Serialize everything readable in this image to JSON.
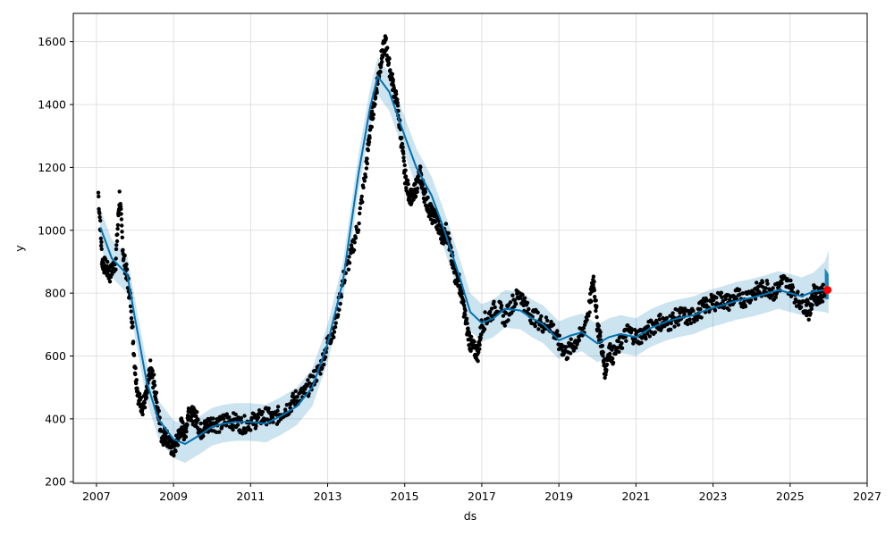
{
  "chart_data": {
    "type": "line",
    "xlabel": "ds",
    "ylabel": "y",
    "xlim": [
      2006.4,
      2027.0
    ],
    "ylim": [
      195,
      1690
    ],
    "grid": true,
    "x_ticks": [
      {
        "value": 2007,
        "label": "2007"
      },
      {
        "value": 2009,
        "label": "2009"
      },
      {
        "value": 2011,
        "label": "2011"
      },
      {
        "value": 2013,
        "label": "2013"
      },
      {
        "value": 2015,
        "label": "2015"
      },
      {
        "value": 2017,
        "label": "2017"
      },
      {
        "value": 2019,
        "label": "2019"
      },
      {
        "value": 2021,
        "label": "2021"
      },
      {
        "value": 2023,
        "label": "2023"
      },
      {
        "value": 2025,
        "label": "2025"
      },
      {
        "value": 2027,
        "label": "2027"
      }
    ],
    "y_ticks": [
      {
        "value": 200,
        "label": "200"
      },
      {
        "value": 400,
        "label": "400"
      },
      {
        "value": 600,
        "label": "600"
      },
      {
        "value": 800,
        "label": "800"
      },
      {
        "value": 1000,
        "label": "1000"
      },
      {
        "value": 1200,
        "label": "1200"
      },
      {
        "value": 1400,
        "label": "1400"
      },
      {
        "value": 1600,
        "label": "1600"
      }
    ],
    "colors": {
      "observed": "#000000",
      "forecast_line": "#0072b2",
      "interval_fill": "#0072b2",
      "highlight": "#ff0000",
      "grid": "#d9d9d9"
    },
    "forecast": {
      "x": [
        2007.1,
        2007.4,
        2007.8,
        2008.0,
        2008.3,
        2008.6,
        2009.0,
        2009.3,
        2009.7,
        2010.0,
        2010.3,
        2010.6,
        2011.0,
        2011.4,
        2011.8,
        2012.2,
        2012.6,
        2013.0,
        2013.4,
        2013.8,
        2014.1,
        2014.3,
        2014.6,
        2015.0,
        2015.3,
        2015.7,
        2016.0,
        2016.4,
        2016.7,
        2017.0,
        2017.3,
        2017.6,
        2018.0,
        2018.3,
        2018.6,
        2019.0,
        2019.3,
        2019.6,
        2020.0,
        2020.3,
        2020.6,
        2021.0,
        2021.4,
        2021.8,
        2022.1,
        2022.5,
        2022.9,
        2023.2,
        2023.6,
        2024.0,
        2024.3,
        2024.7,
        2025.0,
        2025.3,
        2025.6,
        2025.9,
        2026.0
      ],
      "yhat": [
        1010,
        910,
        860,
        720,
        520,
        400,
        335,
        320,
        350,
        375,
        385,
        390,
        390,
        385,
        410,
        440,
        500,
        640,
        840,
        1180,
        1390,
        1490,
        1440,
        1300,
        1200,
        1110,
        1010,
        860,
        740,
        705,
        720,
        750,
        745,
        720,
        700,
        650,
        665,
        675,
        640,
        660,
        670,
        660,
        690,
        710,
        720,
        730,
        750,
        760,
        775,
        785,
        795,
        810,
        800,
        790,
        805,
        810,
        812
      ],
      "lower": [
        950,
        850,
        800,
        660,
        460,
        340,
        275,
        260,
        290,
        315,
        325,
        330,
        330,
        325,
        350,
        380,
        440,
        580,
        780,
        1120,
        1330,
        1430,
        1380,
        1240,
        1140,
        1050,
        950,
        800,
        680,
        645,
        660,
        690,
        685,
        660,
        640,
        590,
        605,
        615,
        580,
        600,
        610,
        600,
        630,
        650,
        660,
        670,
        690,
        700,
        715,
        725,
        735,
        750,
        740,
        730,
        745,
        740,
        735
      ],
      "upper": [
        1070,
        970,
        920,
        780,
        580,
        460,
        395,
        380,
        410,
        435,
        445,
        450,
        450,
        445,
        470,
        500,
        560,
        700,
        900,
        1240,
        1450,
        1550,
        1500,
        1360,
        1260,
        1170,
        1070,
        920,
        800,
        765,
        780,
        810,
        805,
        780,
        760,
        710,
        725,
        735,
        700,
        720,
        730,
        720,
        750,
        770,
        780,
        790,
        810,
        820,
        835,
        845,
        855,
        870,
        860,
        850,
        865,
        900,
        935
      ]
    },
    "observed": {
      "x": [
        2007.05,
        2007.15,
        2007.25,
        2007.35,
        2007.5,
        2007.6,
        2007.7,
        2007.8,
        2007.9,
        2008.0,
        2008.1,
        2008.2,
        2008.3,
        2008.4,
        2008.5,
        2008.6,
        2008.7,
        2008.8,
        2008.9,
        2009.0,
        2009.1,
        2009.2,
        2009.3,
        2009.4,
        2009.5,
        2009.6,
        2009.7,
        2009.8,
        2009.9,
        2010.0,
        2010.2,
        2010.4,
        2010.6,
        2010.8,
        2011.0,
        2011.2,
        2011.4,
        2011.6,
        2011.8,
        2012.0,
        2012.2,
        2012.4,
        2012.6,
        2012.8,
        2013.0,
        2013.2,
        2013.4,
        2013.6,
        2013.8,
        2014.0,
        2014.1,
        2014.2,
        2014.3,
        2014.4,
        2014.5,
        2014.6,
        2014.7,
        2014.8,
        2014.9,
        2015.0,
        2015.1,
        2015.2,
        2015.3,
        2015.4,
        2015.5,
        2015.6,
        2015.7,
        2015.8,
        2015.9,
        2016.0,
        2016.1,
        2016.2,
        2016.3,
        2016.4,
        2016.5,
        2016.6,
        2016.7,
        2016.8,
        2016.9,
        2017.0,
        2017.2,
        2017.4,
        2017.6,
        2017.8,
        2018.0,
        2018.2,
        2018.4,
        2018.6,
        2018.8,
        2019.0,
        2019.2,
        2019.4,
        2019.6,
        2019.8,
        2019.9,
        2020.0,
        2020.1,
        2020.2,
        2020.3,
        2020.4,
        2020.6,
        2020.8,
        2021.0,
        2021.2,
        2021.4,
        2021.6,
        2021.8,
        2022.0,
        2022.2,
        2022.4,
        2022.6,
        2022.8,
        2023.0,
        2023.2,
        2023.4,
        2023.6,
        2023.8,
        2024.0,
        2024.2,
        2024.4,
        2024.6,
        2024.8,
        2025.0,
        2025.2,
        2025.4,
        2025.5,
        2025.6,
        2025.7,
        2025.8
      ],
      "y": [
        1120,
        900,
        880,
        860,
        900,
        1110,
        920,
        850,
        760,
        560,
        460,
        440,
        470,
        560,
        510,
        420,
        340,
        350,
        320,
        300,
        330,
        380,
        350,
        430,
        410,
        400,
        360,
        370,
        380,
        390,
        380,
        400,
        390,
        380,
        390,
        400,
        410,
        400,
        420,
        440,
        470,
        480,
        520,
        560,
        640,
        700,
        840,
        920,
        1020,
        1200,
        1320,
        1400,
        1480,
        1550,
        1600,
        1520,
        1460,
        1400,
        1300,
        1180,
        1120,
        1100,
        1140,
        1180,
        1120,
        1080,
        1050,
        1040,
        1000,
        980,
        1000,
        920,
        860,
        840,
        780,
        700,
        640,
        620,
        610,
        700,
        730,
        760,
        720,
        770,
        800,
        740,
        720,
        700,
        700,
        640,
        610,
        640,
        670,
        760,
        850,
        700,
        640,
        550,
        620,
        600,
        640,
        680,
        660,
        670,
        690,
        710,
        700,
        720,
        730,
        720,
        740,
        760,
        770,
        780,
        770,
        790,
        780,
        800,
        810,
        820,
        800,
        840,
        820,
        780,
        760,
        740,
        800,
        790,
        800
      ]
    },
    "highlight_point": {
      "x": 2025.97,
      "y": 810
    }
  }
}
